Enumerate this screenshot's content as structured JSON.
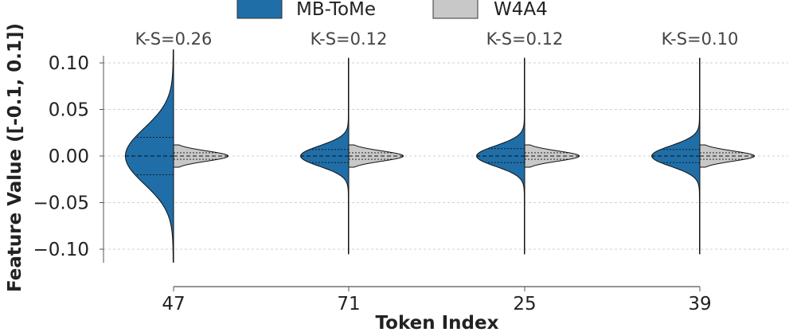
{
  "chart_data": {
    "type": "violin",
    "split": true,
    "xlabel": "Token Index",
    "ylabel": "Feature Value ([-0.1, 0.1])",
    "ylim": [
      -0.125,
      0.12
    ],
    "yticks": [
      0.1,
      0.05,
      0.0,
      -0.05,
      -0.1
    ],
    "ytick_labels": [
      "0.10",
      "0.05",
      "0.00",
      "−0.05",
      "−0.10"
    ],
    "grid": "horizontal dashed",
    "legend_position": "top-center",
    "categories": [
      "47",
      "71",
      "25",
      "39"
    ],
    "ks_labels": [
      "K-S=0.26",
      "K-S=0.12",
      "K-S=0.12",
      "K-S=0.10"
    ],
    "series": [
      {
        "name": "MB-ToMe",
        "side": "left",
        "color": "#1f6ea8",
        "violins": [
          {
            "range": [
              -0.114,
              0.114
            ],
            "sd": 0.03,
            "quartiles": [
              -0.02,
              0.0,
              0.02
            ]
          },
          {
            "range": [
              -0.105,
              0.105
            ],
            "sd": 0.011,
            "quartiles": [
              -0.007,
              0.0,
              0.007
            ]
          },
          {
            "range": [
              -0.105,
              0.105
            ],
            "sd": 0.011,
            "quartiles": [
              -0.007,
              0.0,
              0.008
            ]
          },
          {
            "range": [
              -0.105,
              0.105
            ],
            "sd": 0.011,
            "quartiles": [
              -0.007,
              0.0,
              0.007
            ]
          }
        ]
      },
      {
        "name": "W4A4",
        "side": "right",
        "color": "#c8c8c8",
        "violins": [
          {
            "range": [
              -0.012,
              0.012
            ],
            "sd": 0.0055,
            "quartiles": [
              -0.0035,
              0.0,
              0.0035
            ]
          },
          {
            "range": [
              -0.012,
              0.012
            ],
            "sd": 0.0055,
            "quartiles": [
              -0.0035,
              0.0,
              0.0035
            ]
          },
          {
            "range": [
              -0.012,
              0.012
            ],
            "sd": 0.0055,
            "quartiles": [
              -0.0035,
              0.0,
              0.0035
            ]
          },
          {
            "range": [
              -0.012,
              0.012
            ],
            "sd": 0.0055,
            "quartiles": [
              -0.0035,
              0.0,
              0.0035
            ]
          }
        ]
      }
    ]
  }
}
